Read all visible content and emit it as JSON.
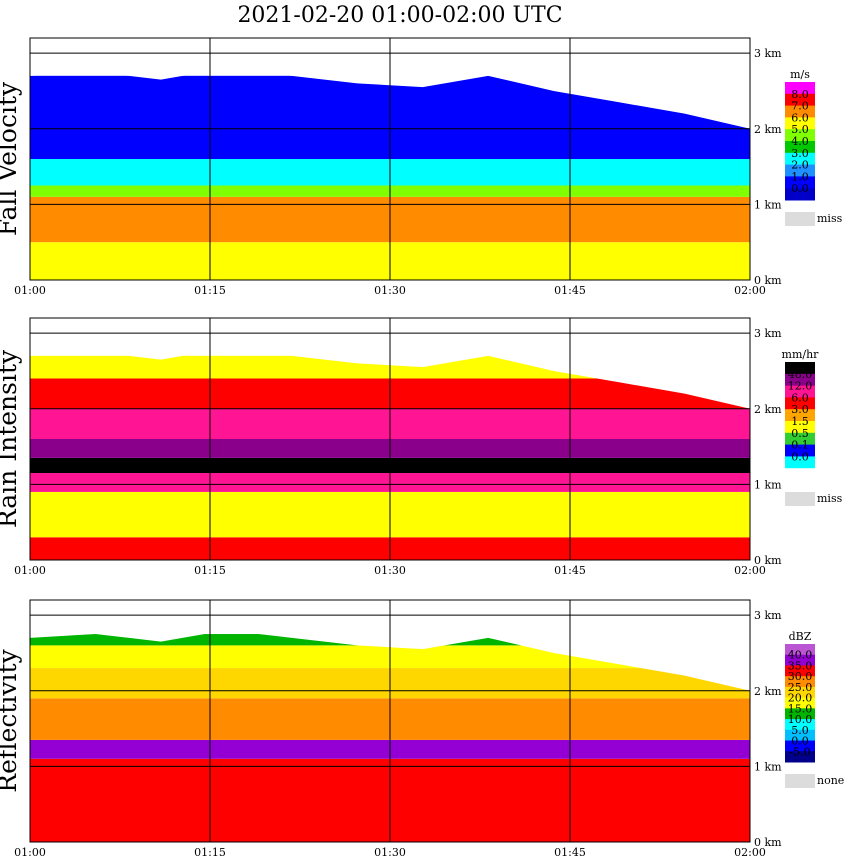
{
  "title": "2021-02-20   01:00-02:00 UTC",
  "chart_data": [
    {
      "type": "heatmap",
      "ylabel": "Fall Velocity",
      "x_ticks": [
        "01:00",
        "01:15",
        "01:30",
        "01:45",
        "02:00"
      ],
      "y_ticks": [
        "0 km",
        "1 km",
        "2 km",
        "3 km"
      ],
      "ylim": [
        0,
        3.2
      ],
      "legend": {
        "unit": "m/s",
        "levels": [
          "8.0",
          "7.0",
          "6.0",
          "5.0",
          "4.0",
          "3.0",
          "2.0",
          "1.0",
          "0.0"
        ],
        "colors": [
          "#ff00ff",
          "#ff0000",
          "#ff8c00",
          "#ffff00",
          "#7fff00",
          "#00c800",
          "#00ffff",
          "#1e90ff",
          "#0000ff",
          "#0000c8"
        ],
        "missing_label": "miss",
        "missing_color": "#dcdcdc"
      },
      "bands": [
        {
          "from": 0.0,
          "to": 0.5,
          "level": 5.0
        },
        {
          "from": 0.5,
          "to": 1.1,
          "level": 6.0
        },
        {
          "from": 1.1,
          "to": 1.25,
          "level": 4.0
        },
        {
          "from": 1.25,
          "to": 1.6,
          "level": 2.0
        },
        {
          "from": 1.6,
          "to": 2.7,
          "level": 0.5
        }
      ],
      "cloud_top_km": [
        2.7,
        2.75,
        2.65,
        2.8,
        2.7,
        2.6,
        2.55,
        2.7,
        2.5,
        2.35,
        2.2,
        2.0
      ]
    },
    {
      "type": "heatmap",
      "ylabel": "Rain Intensity",
      "x_ticks": [
        "01:00",
        "01:15",
        "01:30",
        "01:45",
        "02:00"
      ],
      "y_ticks": [
        "0 km",
        "1 km",
        "2 km",
        "3 km"
      ],
      "ylim": [
        0,
        3.2
      ],
      "legend": {
        "unit": "mm/hr",
        "levels": [
          "48.0",
          "12.0",
          "6.0",
          "3.0",
          "1.5",
          "0.5",
          "0.1",
          "0.0"
        ],
        "colors": [
          "#000000",
          "#8b008b",
          "#ff1493",
          "#ff0000",
          "#ffa500",
          "#ffff00",
          "#32cd32",
          "#0000ff",
          "#00ffff",
          "#ffffff"
        ],
        "missing_label": "miss",
        "missing_color": "#dcdcdc"
      },
      "bands": [
        {
          "from": 0.0,
          "to": 0.3,
          "level": 3.0
        },
        {
          "from": 0.3,
          "to": 0.9,
          "level": 0.5
        },
        {
          "from": 0.9,
          "to": 1.15,
          "level": 6.0
        },
        {
          "from": 1.15,
          "to": 1.35,
          "level": 48.0
        },
        {
          "from": 1.35,
          "to": 1.6,
          "level": 12.0
        },
        {
          "from": 1.6,
          "to": 2.0,
          "level": 6.0
        },
        {
          "from": 2.0,
          "to": 2.4,
          "level": 3.0
        },
        {
          "from": 2.4,
          "to": 2.7,
          "level": 0.5
        }
      ],
      "cloud_top_km": [
        2.7,
        2.75,
        2.65,
        2.8,
        2.7,
        2.6,
        2.55,
        2.7,
        2.5,
        2.35,
        2.2,
        2.0
      ]
    },
    {
      "type": "heatmap",
      "ylabel": "Reflectivity",
      "x_ticks": [
        "01:00",
        "01:15",
        "01:30",
        "01:45",
        "02:00"
      ],
      "y_ticks": [
        "0 km",
        "1 km",
        "2 km",
        "3 km"
      ],
      "ylim": [
        0,
        3.2
      ],
      "legend": {
        "unit": "dBZ",
        "levels": [
          "40.0",
          "35.0",
          "30.0",
          "25.0",
          "20.0",
          "15.0",
          "10.0",
          "5.0",
          "0.0",
          "-5.0"
        ],
        "colors": [
          "#ba55d3",
          "#9400d3",
          "#ff0000",
          "#ff8c00",
          "#ffd700",
          "#ffff00",
          "#00b400",
          "#00ffff",
          "#00bfff",
          "#0000ff",
          "#00008b"
        ],
        "missing_label": "none",
        "missing_color": "#dcdcdc"
      },
      "bands": [
        {
          "from": 0.0,
          "to": 1.1,
          "level": 30.0
        },
        {
          "from": 1.1,
          "to": 1.35,
          "level": 35.0
        },
        {
          "from": 1.35,
          "to": 1.9,
          "level": 25.0
        },
        {
          "from": 1.9,
          "to": 2.3,
          "level": 20.0
        },
        {
          "from": 2.3,
          "to": 2.6,
          "level": 15.0
        },
        {
          "from": 2.6,
          "to": 2.75,
          "level": 10.0
        }
      ],
      "cloud_top_km": [
        2.7,
        2.75,
        2.65,
        2.8,
        2.7,
        2.6,
        2.55,
        2.7,
        2.5,
        2.35,
        2.2,
        2.0
      ]
    }
  ]
}
